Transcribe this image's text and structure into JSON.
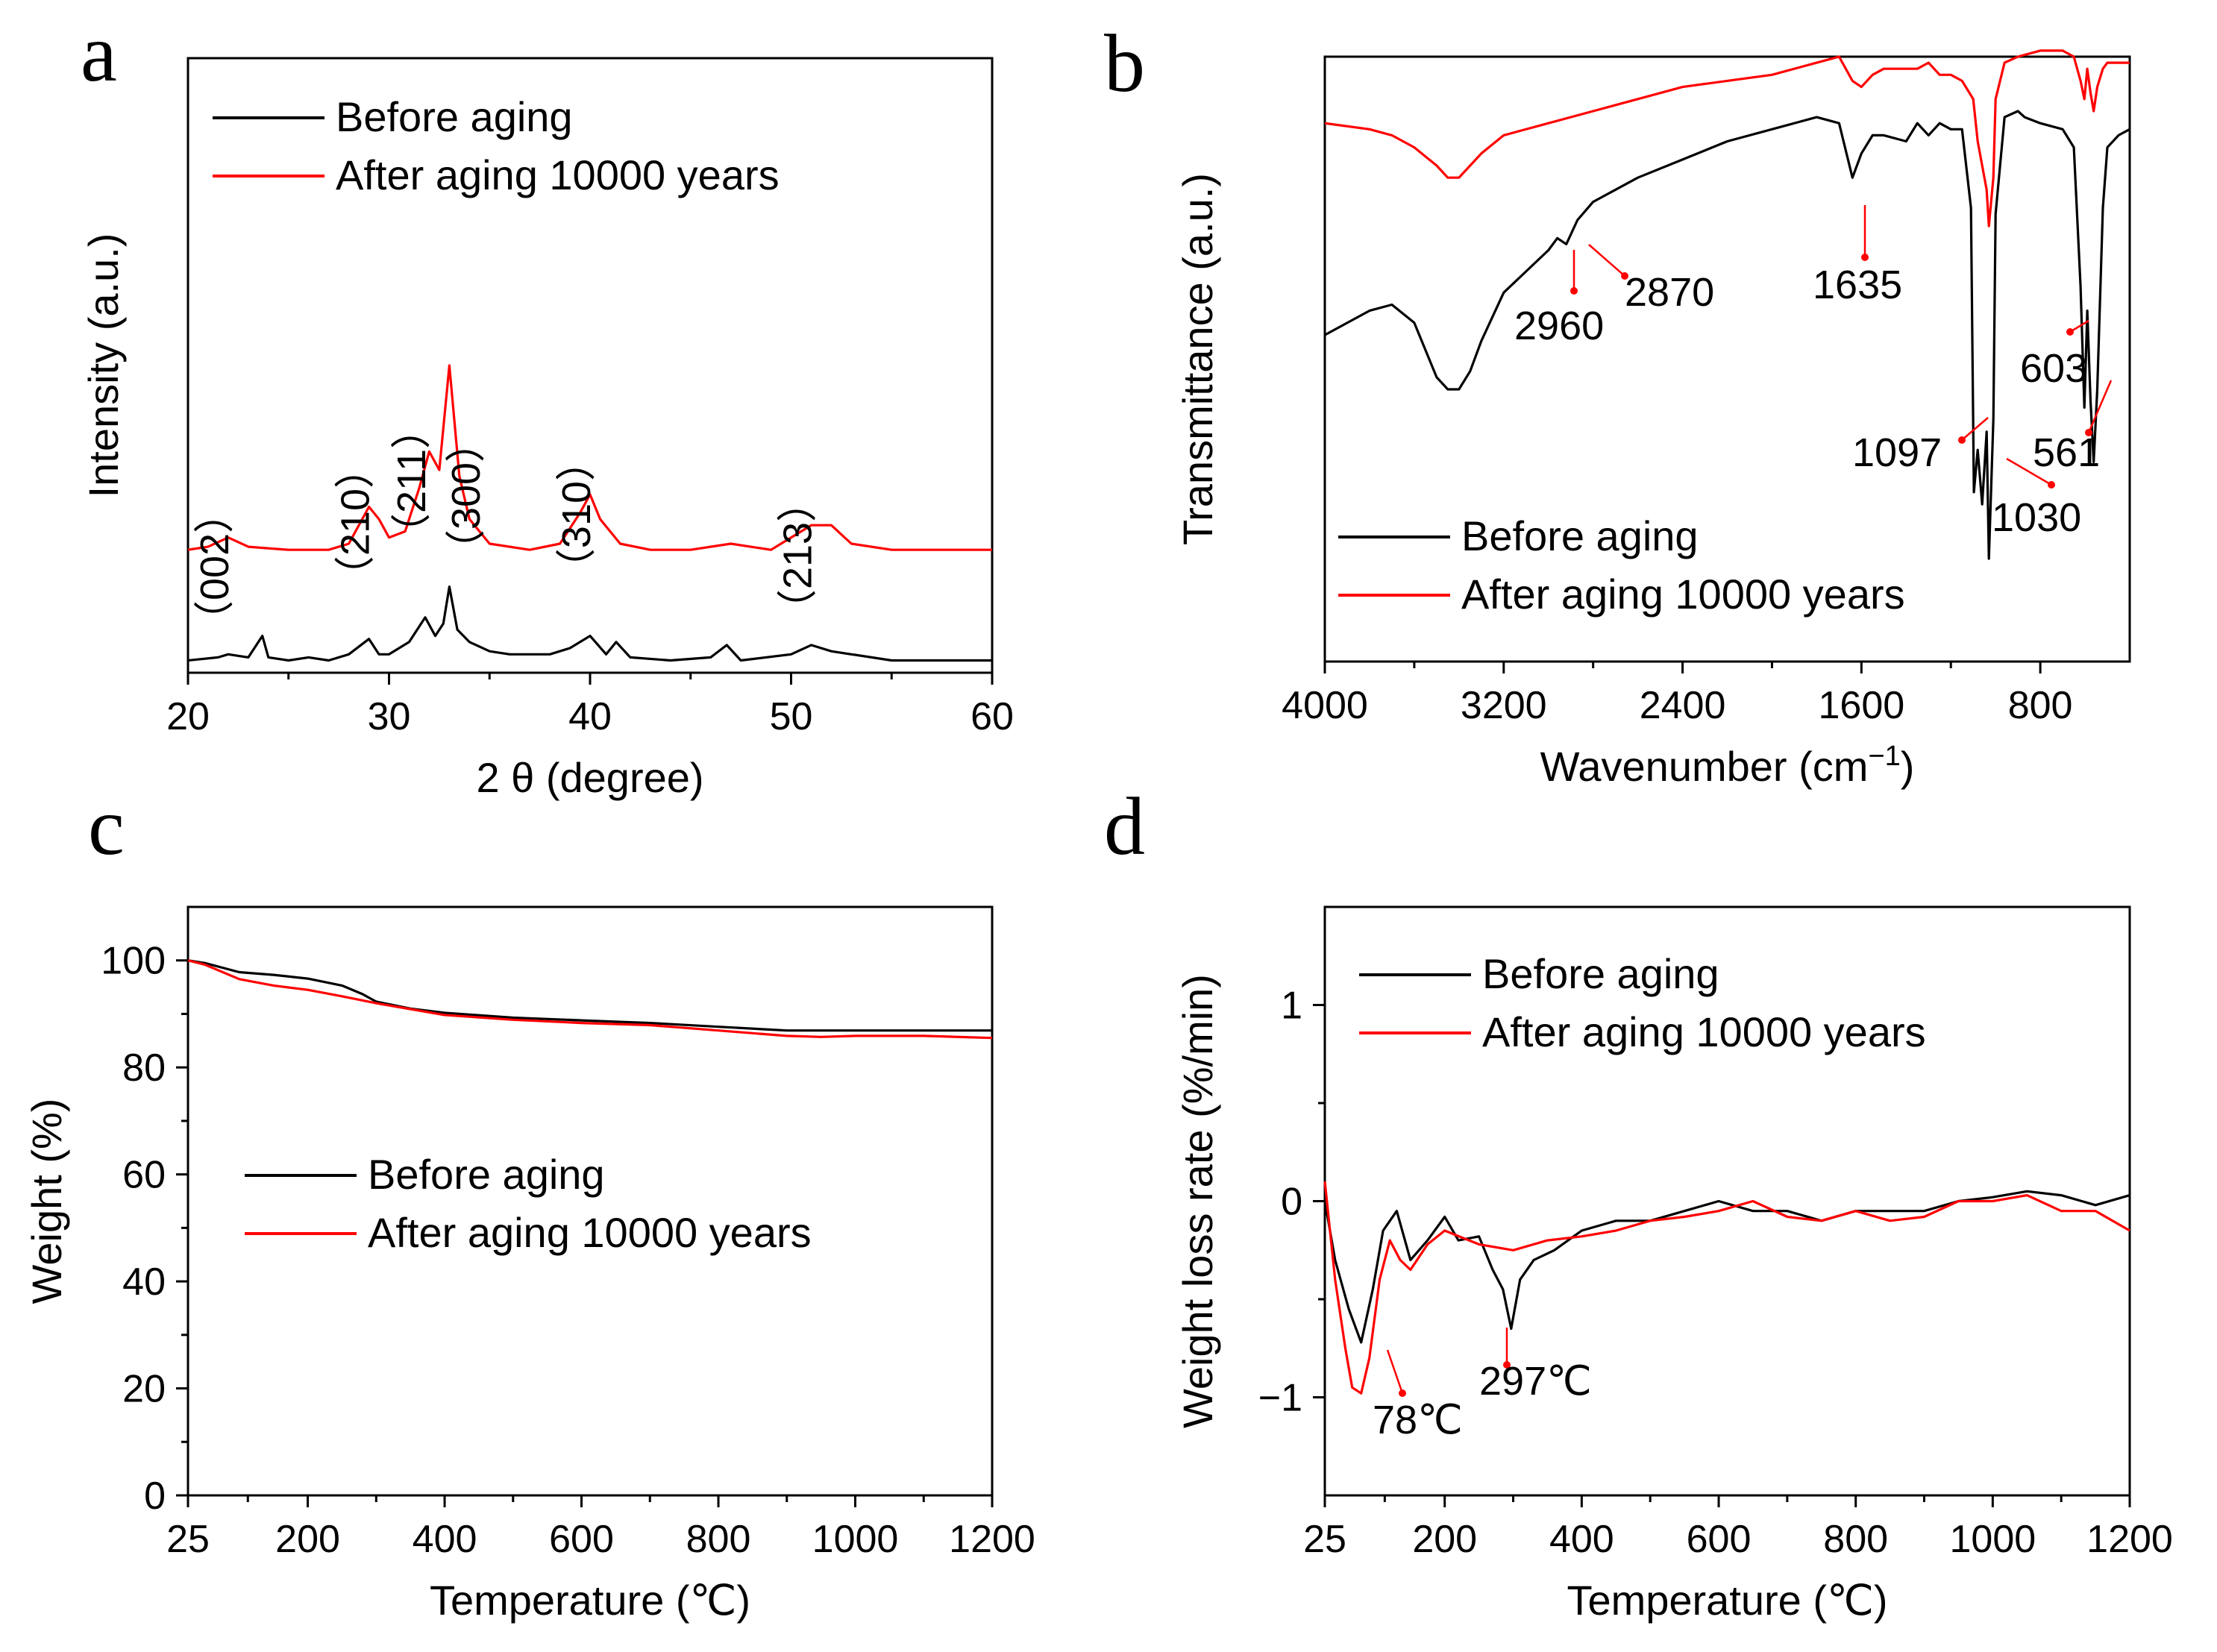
{
  "colors": {
    "before": "#000000",
    "after": "#ff0000"
  },
  "chart_data": [
    {
      "type": "line",
      "panel": "a",
      "xlabel": "2 θ (degree)",
      "ylabel": "Intensity (a.u.)",
      "xlim": [
        20,
        60
      ],
      "ylim": [
        0,
        10
      ],
      "xticks": [
        20,
        30,
        40,
        50,
        60
      ],
      "legend": [
        "Before aging",
        "After aging 10000 years"
      ],
      "legend_position": "top-left",
      "peak_labels": [
        {
          "x": 22,
          "label": "（002）"
        },
        {
          "x": 29,
          "label": "（210）"
        },
        {
          "x": 31.8,
          "label": "（211）"
        },
        {
          "x": 34.5,
          "label": "（300）"
        },
        {
          "x": 40,
          "label": "（310）"
        },
        {
          "x": 51,
          "label": "（213）"
        }
      ],
      "series": [
        {
          "name": "Before aging",
          "x": [
            20,
            21.5,
            22,
            23,
            23.7,
            24,
            25,
            26,
            27,
            28,
            29,
            29.5,
            30,
            31,
            31.8,
            32.3,
            32.7,
            33,
            33.4,
            34,
            35,
            36,
            38,
            39,
            40,
            40.8,
            41.3,
            42,
            44,
            46,
            46.8,
            47.5,
            50,
            51,
            52,
            55,
            58,
            60
          ],
          "y": [
            0.2,
            0.25,
            0.3,
            0.25,
            0.6,
            0.25,
            0.2,
            0.25,
            0.2,
            0.3,
            0.55,
            0.3,
            0.3,
            0.5,
            0.9,
            0.6,
            0.8,
            1.4,
            0.7,
            0.5,
            0.35,
            0.3,
            0.3,
            0.4,
            0.6,
            0.3,
            0.5,
            0.25,
            0.2,
            0.25,
            0.45,
            0.2,
            0.3,
            0.45,
            0.35,
            0.2,
            0.2,
            0.2
          ]
        },
        {
          "name": "After aging 10000 years",
          "x": [
            20,
            21,
            22,
            23,
            25,
            27,
            28,
            29,
            29.5,
            30,
            30.8,
            31.5,
            32,
            32.5,
            33,
            33.5,
            34,
            35,
            37,
            38.5,
            39.5,
            40,
            40.5,
            41.5,
            43,
            45,
            47,
            49,
            50,
            51,
            52,
            53,
            55,
            57,
            60
          ],
          "y": [
            2.0,
            2.05,
            2.2,
            2.05,
            2.0,
            2.0,
            2.1,
            2.7,
            2.5,
            2.2,
            2.3,
            3.0,
            3.6,
            3.3,
            5.0,
            3.2,
            2.5,
            2.1,
            2.0,
            2.1,
            2.6,
            2.9,
            2.5,
            2.1,
            2.0,
            2.0,
            2.1,
            2.0,
            2.2,
            2.4,
            2.4,
            2.1,
            2.0,
            2.0,
            2.0
          ]
        }
      ]
    },
    {
      "type": "line",
      "panel": "b",
      "xlabel": "Wavenumber (cm",
      "xlabel_sup": "−1",
      "xlabel_close": ")",
      "ylabel": "Transmittance (a.u.)",
      "xlim": [
        4000,
        400
      ],
      "ylim": [
        0,
        10
      ],
      "xticks": [
        4000,
        3200,
        2400,
        1600,
        800
      ],
      "legend": [
        "Before aging",
        "After aging 10000 years"
      ],
      "legend_position": "bottom-left",
      "annotations": [
        "2960",
        "2870",
        "1635",
        "603",
        "1097",
        "561",
        "1030"
      ],
      "series": [
        {
          "name": "Before aging",
          "x": [
            4000,
            3800,
            3700,
            3600,
            3500,
            3450,
            3400,
            3350,
            3300,
            3200,
            3000,
            2960,
            2920,
            2870,
            2800,
            2600,
            2400,
            2200,
            2000,
            1800,
            1700,
            1640,
            1600,
            1550,
            1500,
            1400,
            1350,
            1300,
            1250,
            1200,
            1150,
            1110,
            1097,
            1080,
            1060,
            1040,
            1030,
            1010,
            1000,
            960,
            900,
            870,
            800,
            700,
            650,
            620,
            603,
            590,
            575,
            561,
            545,
            520,
            500,
            450,
            400
          ],
          "y": [
            5.4,
            5.8,
            5.9,
            5.6,
            4.7,
            4.5,
            4.5,
            4.8,
            5.3,
            6.1,
            6.8,
            7.0,
            6.9,
            7.3,
            7.6,
            8.0,
            8.3,
            8.6,
            8.8,
            9.0,
            8.9,
            8.0,
            8.4,
            8.7,
            8.7,
            8.6,
            8.9,
            8.7,
            8.9,
            8.8,
            8.8,
            7.5,
            2.8,
            3.5,
            2.6,
            3.8,
            1.7,
            4.0,
            7.4,
            9.0,
            9.1,
            9.0,
            8.9,
            8.8,
            8.5,
            6.2,
            4.2,
            5.8,
            4.3,
            3.3,
            4.5,
            7.5,
            8.5,
            8.7,
            8.8
          ]
        },
        {
          "name": "After aging 10000 years",
          "x": [
            4000,
            3800,
            3700,
            3600,
            3500,
            3450,
            3400,
            3350,
            3300,
            3200,
            3000,
            2800,
            2600,
            2400,
            2200,
            2000,
            1800,
            1700,
            1640,
            1600,
            1550,
            1500,
            1400,
            1350,
            1300,
            1250,
            1200,
            1150,
            1100,
            1080,
            1040,
            1030,
            1010,
            1000,
            960,
            900,
            800,
            700,
            650,
            620,
            603,
            590,
            575,
            561,
            545,
            520,
            500,
            450,
            400
          ],
          "y": [
            8.9,
            8.8,
            8.7,
            8.5,
            8.2,
            8.0,
            8.0,
            8.2,
            8.4,
            8.7,
            8.9,
            9.1,
            9.3,
            9.5,
            9.6,
            9.7,
            9.9,
            10.0,
            9.6,
            9.5,
            9.7,
            9.8,
            9.8,
            9.8,
            9.9,
            9.7,
            9.7,
            9.6,
            9.3,
            8.6,
            7.8,
            7.2,
            8.0,
            9.3,
            9.9,
            10.0,
            10.1,
            10.1,
            10.0,
            9.6,
            9.3,
            9.8,
            9.4,
            9.1,
            9.5,
            9.8,
            9.9,
            9.9,
            9.9
          ]
        }
      ]
    },
    {
      "type": "line",
      "panel": "c",
      "xlabel": "Temperature (℃)",
      "ylabel": "Weight (%)",
      "xlim": [
        25,
        1200
      ],
      "ylim": [
        0,
        110
      ],
      "xticks": [
        25,
        200,
        400,
        600,
        800,
        1000,
        1200
      ],
      "yticks": [
        0,
        20,
        40,
        60,
        80,
        100
      ],
      "legend": [
        "Before aging",
        "After aging 10000 years"
      ],
      "legend_position": "center-left",
      "series": [
        {
          "name": "Before aging",
          "x": [
            25,
            50,
            100,
            150,
            200,
            250,
            280,
            300,
            350,
            400,
            500,
            600,
            700,
            800,
            900,
            1000,
            1100,
            1200
          ],
          "y": [
            100,
            99.5,
            97.8,
            97.3,
            96.6,
            95.3,
            93.7,
            92.3,
            91.0,
            90.2,
            89.3,
            88.8,
            88.3,
            87.6,
            86.9,
            86.9,
            86.9,
            86.9
          ]
        },
        {
          "name": "After aging 10000 years",
          "x": [
            25,
            50,
            100,
            150,
            200,
            250,
            300,
            350,
            400,
            500,
            600,
            700,
            800,
            900,
            950,
            1000,
            1100,
            1200
          ],
          "y": [
            100,
            99.2,
            96.5,
            95.3,
            94.5,
            93.3,
            92.0,
            90.9,
            89.8,
            88.9,
            88.3,
            87.9,
            86.9,
            85.9,
            85.7,
            85.9,
            85.9,
            85.5
          ]
        }
      ]
    },
    {
      "type": "line",
      "panel": "d",
      "xlabel": "Temperature (℃)",
      "ylabel": "Weight loss rate (%/min)",
      "xlim": [
        25,
        1200
      ],
      "ylim": [
        -1.5,
        1.5
      ],
      "xticks": [
        25,
        200,
        400,
        600,
        800,
        1000,
        1200
      ],
      "yticks": [
        -1,
        0,
        1
      ],
      "ytick_labels": [
        "−1",
        "0",
        "1"
      ],
      "legend": [
        "Before aging",
        "After aging 10000 years"
      ],
      "legend_position": "top-left",
      "annotations": [
        "78℃",
        "297℃"
      ],
      "series": [
        {
          "name": "Before aging",
          "x": [
            25,
            40,
            60,
            78,
            95,
            110,
            130,
            150,
            175,
            200,
            220,
            250,
            270,
            285,
            297,
            310,
            330,
            360,
            400,
            450,
            500,
            550,
            600,
            650,
            700,
            750,
            800,
            850,
            900,
            950,
            1000,
            1050,
            1100,
            1150,
            1200
          ],
          "y": [
            0.0,
            -0.3,
            -0.55,
            -0.72,
            -0.45,
            -0.15,
            -0.05,
            -0.3,
            -0.2,
            -0.08,
            -0.2,
            -0.18,
            -0.35,
            -0.45,
            -0.65,
            -0.4,
            -0.3,
            -0.25,
            -0.15,
            -0.1,
            -0.1,
            -0.05,
            0.0,
            -0.05,
            -0.05,
            -0.1,
            -0.05,
            -0.05,
            -0.05,
            0.0,
            0.02,
            0.05,
            0.03,
            -0.02,
            0.03
          ]
        },
        {
          "name": "After aging 10000 years",
          "x": [
            25,
            40,
            55,
            65,
            78,
            90,
            105,
            120,
            135,
            150,
            175,
            200,
            250,
            300,
            350,
            400,
            450,
            500,
            550,
            600,
            650,
            700,
            750,
            800,
            850,
            900,
            950,
            1000,
            1050,
            1100,
            1150,
            1200
          ],
          "y": [
            0.1,
            -0.4,
            -0.75,
            -0.95,
            -0.98,
            -0.8,
            -0.4,
            -0.2,
            -0.3,
            -0.35,
            -0.22,
            -0.15,
            -0.22,
            -0.25,
            -0.2,
            -0.18,
            -0.15,
            -0.1,
            -0.08,
            -0.05,
            0.0,
            -0.08,
            -0.1,
            -0.05,
            -0.1,
            -0.08,
            0.0,
            0.0,
            0.03,
            -0.05,
            -0.05,
            -0.15
          ]
        }
      ]
    }
  ]
}
